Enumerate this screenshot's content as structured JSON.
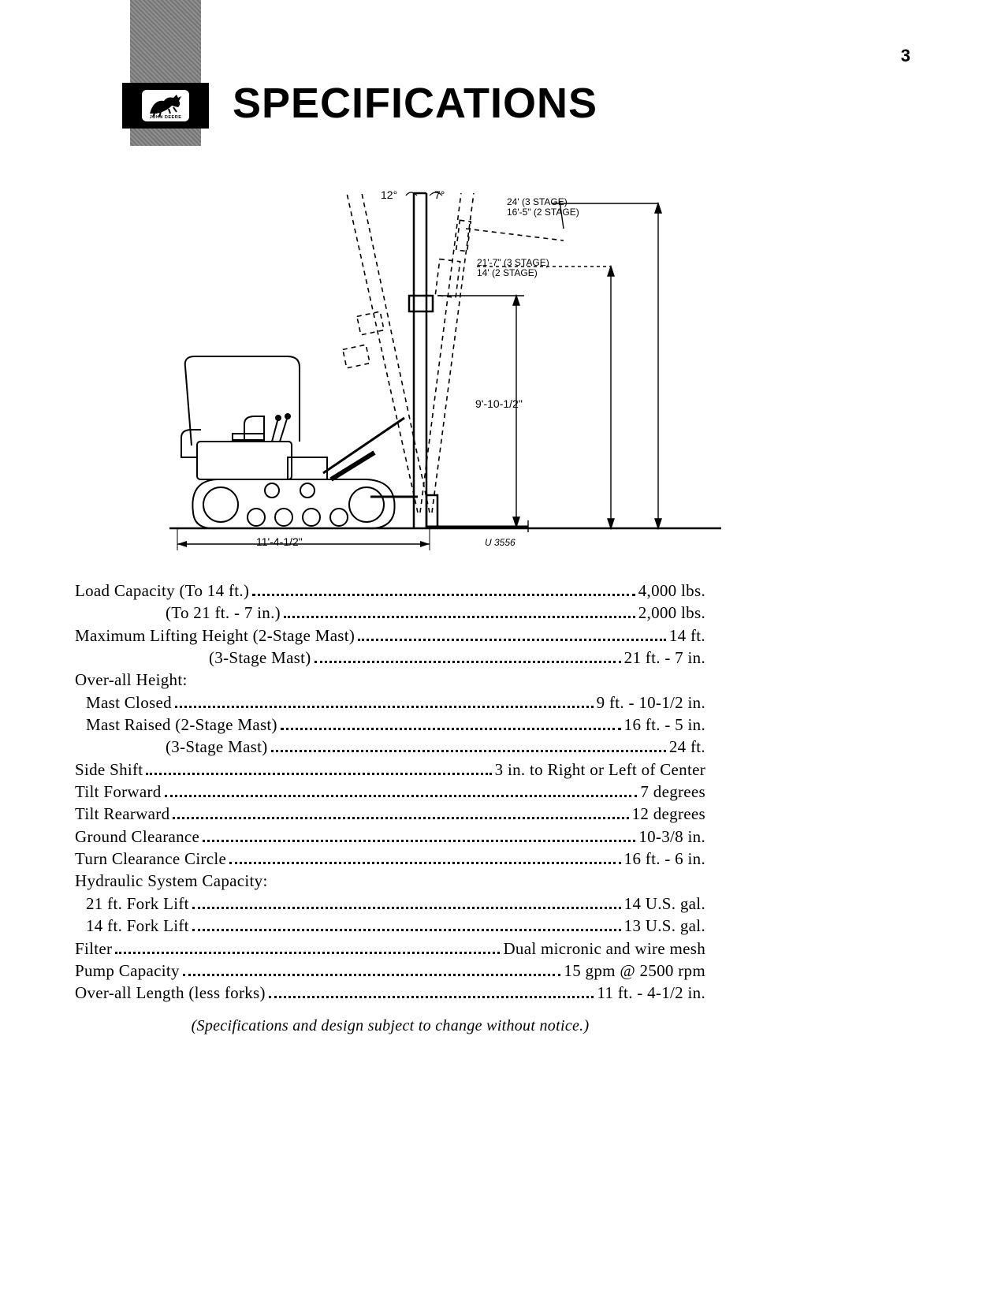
{
  "page_number": "3",
  "brand_text": "JOHN DEERE",
  "title": "SPECIFICATIONS",
  "diagram": {
    "tilt_back_angle": "12°",
    "tilt_fwd_angle": "7°",
    "extended_3stage": "24' (3 STAGE)",
    "extended_2stage": "16'-5\" (2 STAGE)",
    "lower_3stage": "21'-7\" (3 STAGE)",
    "lower_2stage": "14' (2 STAGE)",
    "closed_height": "9'-10-1/2\"",
    "overall_length": "11'-4-1/2\"",
    "figure_code": "U 3556",
    "stroke": "#000000",
    "dash": "6,5"
  },
  "specs": [
    {
      "label": "Load Capacity (To 14 ft.)",
      "value": "4,000 lbs."
    },
    {
      "label_indent": "indent1",
      "label": "(To 21 ft. - 7 in.)",
      "value": "2,000 lbs."
    },
    {
      "label": "Maximum Lifting Height (2-Stage Mast)",
      "value": "14 ft."
    },
    {
      "label_indent": "indent2",
      "label": "(3-Stage Mast)",
      "value": "21 ft. - 7 in."
    },
    {
      "label": "Over-all Height:",
      "header": true
    },
    {
      "label_indent": "indent3",
      "label": "Mast Closed",
      "value": "9 ft. - 10-1/2 in."
    },
    {
      "label_indent": "indent3",
      "label": "Mast Raised (2-Stage Mast)",
      "value": "16 ft. - 5 in."
    },
    {
      "label_indent": "indent1",
      "label": "(3-Stage Mast)",
      "value": "24 ft."
    },
    {
      "label": "Side Shift",
      "value": "3 in. to Right or Left of Center"
    },
    {
      "label": "Tilt Forward",
      "value": "7 degrees"
    },
    {
      "label": "Tilt Rearward",
      "value": "12 degrees"
    },
    {
      "label": "Ground Clearance",
      "value": "10-3/8 in."
    },
    {
      "label": "Turn Clearance Circle",
      "value": "16 ft. - 6 in."
    },
    {
      "label": "Hydraulic System Capacity:",
      "header": true
    },
    {
      "label_indent": "indent3",
      "label": "21 ft. Fork Lift",
      "value": "14 U.S. gal."
    },
    {
      "label_indent": "indent3",
      "label": "14 ft. Fork Lift",
      "value": "13 U.S. gal."
    },
    {
      "label": "Filter",
      "value": "Dual micronic and wire mesh"
    },
    {
      "label": "Pump Capacity",
      "value": "15 gpm @ 2500 rpm"
    },
    {
      "label": "Over-all Length (less forks)",
      "value": "11 ft. - 4-1/2 in."
    }
  ],
  "footnote": "(Specifications and design subject to change without notice.)"
}
